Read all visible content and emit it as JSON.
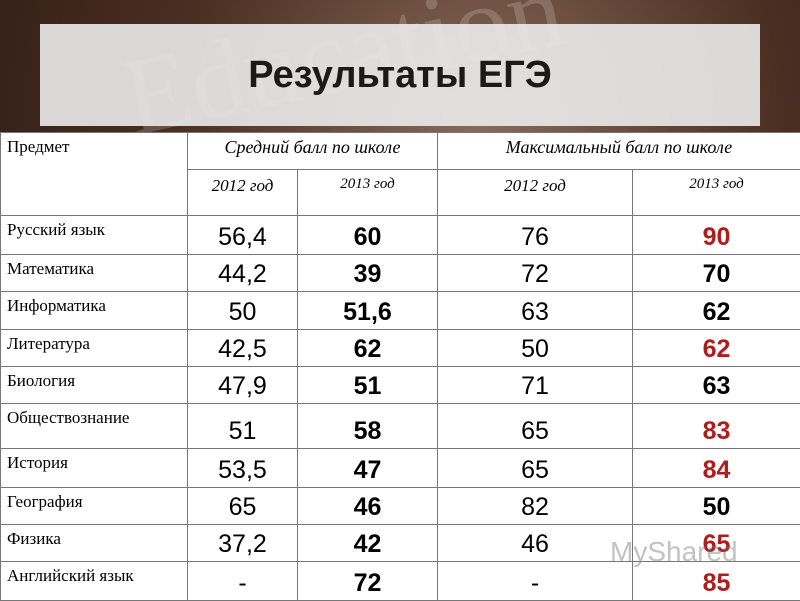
{
  "header": {
    "title": "Результаты ЕГЭ"
  },
  "table": {
    "columns": {
      "subject": "Предмет",
      "avg": "Средний балл по школе",
      "max": "Максимальный балл по школе",
      "years": [
        "2012 год",
        "2013 год",
        "2012 год",
        "2013 год"
      ]
    },
    "rows": [
      [
        "Русский язык",
        "56,4",
        "60",
        "76",
        "90"
      ],
      [
        "Математика",
        "44,2",
        "39",
        "72",
        "70"
      ],
      [
        "Информатика",
        "50",
        "51,6",
        "63",
        "62"
      ],
      [
        "Литература",
        "42,5",
        "62",
        "50",
        "62"
      ],
      [
        "Биология",
        "47,9",
        "51",
        "71",
        "63"
      ],
      [
        "Обществознание",
        "51",
        "58",
        "65",
        "83"
      ],
      [
        "История",
        "53,5",
        "47",
        "65",
        "84"
      ],
      [
        "География",
        "65",
        "46",
        "82",
        "50"
      ],
      [
        "Физика",
        "37,2",
        "42",
        "46",
        "65"
      ],
      [
        "Английский язык",
        "-",
        "72",
        "-",
        "85"
      ]
    ],
    "max2013_colors": [
      "#b01c1c",
      "#000000",
      "#000000",
      "#b01c1c",
      "#000000",
      "#b01c1c",
      "#b01c1c",
      "#000000",
      "#b01c1c",
      "#b01c1c"
    ]
  },
  "watermark": "MyShared"
}
